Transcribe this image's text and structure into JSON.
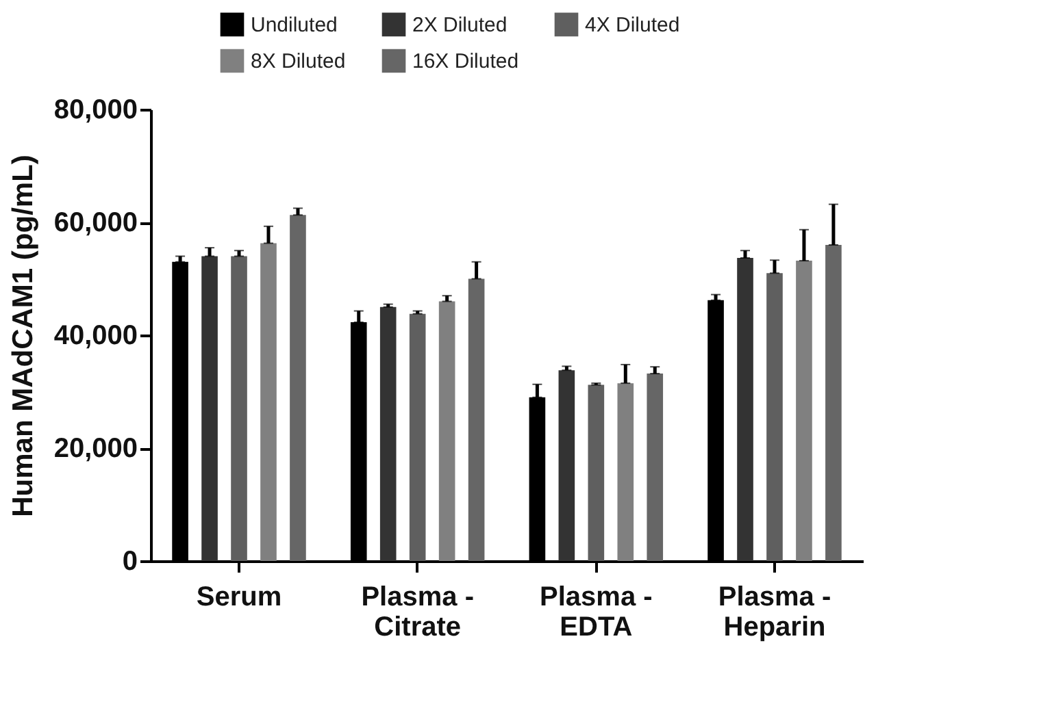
{
  "chart_data": {
    "type": "bar",
    "ylabel": "Human MAdCAM1 (pg/mL)",
    "categories": [
      "Serum",
      "Plasma - Citrate",
      "Plasma - EDTA",
      "Plasma - Heparin"
    ],
    "series": [
      {
        "name": "Undiluted",
        "color": "#000000",
        "values": [
          53000,
          42300,
          29000,
          46200
        ],
        "errors": [
          1000,
          2000,
          2300,
          1000
        ]
      },
      {
        "name": "2X Diluted",
        "color": "#333333",
        "values": [
          54000,
          45000,
          33800,
          53700
        ],
        "errors": [
          1500,
          500,
          700,
          1300
        ]
      },
      {
        "name": "4X Diluted",
        "color": "#5f5f5f",
        "values": [
          54000,
          43800,
          31200,
          51000
        ],
        "errors": [
          1000,
          500,
          300,
          2300
        ]
      },
      {
        "name": "8X Diluted",
        "color": "#808080",
        "values": [
          56300,
          46000,
          31500,
          53200
        ],
        "errors": [
          3000,
          1000,
          3300,
          5500
        ]
      },
      {
        "name": "16X Diluted",
        "color": "#666666",
        "values": [
          61300,
          50000,
          33200,
          56000
        ],
        "errors": [
          1200,
          3000,
          1200,
          7200
        ]
      }
    ],
    "ylim": [
      0,
      80000
    ],
    "yticks": [
      0,
      {
        "value": 20000,
        "label": "20,000"
      },
      {
        "value": 40000,
        "label": "40,000"
      },
      {
        "value": 60000,
        "label": "60,000"
      },
      {
        "value": 80000,
        "label": "80,000"
      }
    ],
    "grid": false,
    "legend": "top"
  }
}
